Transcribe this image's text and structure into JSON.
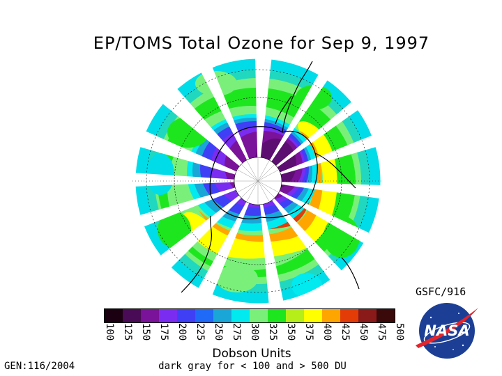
{
  "title": "EP/TOMS Total Ozone for Sep  9, 1997",
  "map": {
    "projection": "south-polar",
    "description_labels": []
  },
  "legend": {
    "colors": [
      "#1a0010",
      "#4a0b56",
      "#7b129a",
      "#7a2cf0",
      "#3f3ff6",
      "#1f6af6",
      "#1aa6d6",
      "#00eaf0",
      "#7af07a",
      "#1ee61e",
      "#b6ee1a",
      "#ffff00",
      "#ffa500",
      "#e43c06",
      "#8a1a1a",
      "#3a0a0a"
    ],
    "ticks": [
      "100",
      "125",
      "150",
      "175",
      "200",
      "225",
      "250",
      "275",
      "300",
      "325",
      "350",
      "375",
      "400",
      "425",
      "450",
      "475",
      "500"
    ],
    "units": "Dobson Units",
    "note": "dark gray for < 100 and > 500 DU"
  },
  "credit": "GSFC/916",
  "gen": "GEN:116/2004",
  "logo": {
    "text": "NASA",
    "blue": "#1c3f95",
    "red": "#e4242b"
  }
}
